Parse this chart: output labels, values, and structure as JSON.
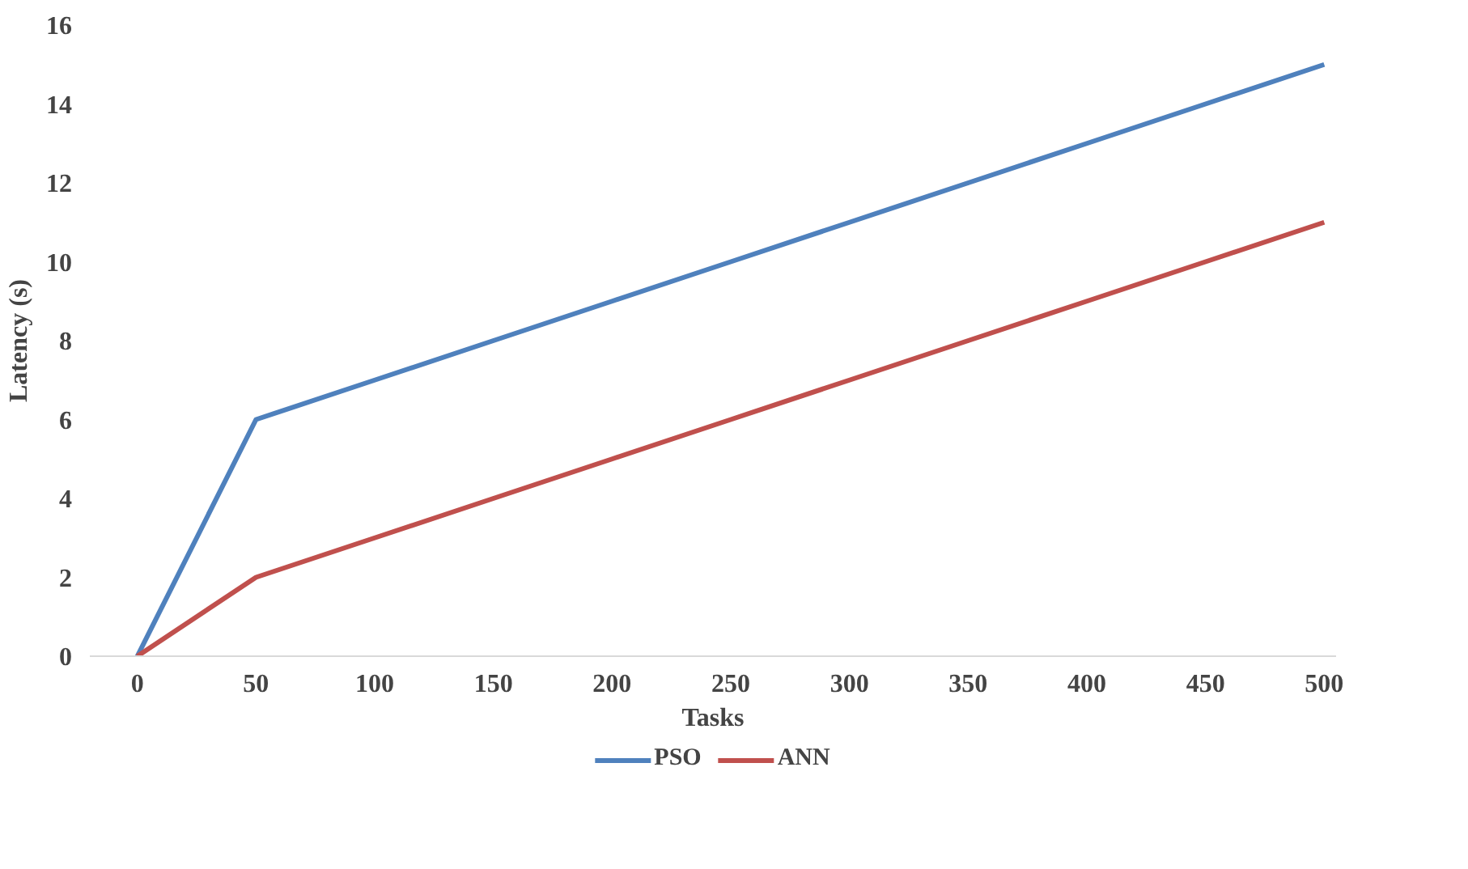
{
  "chart_data": {
    "type": "line",
    "xlabel": "Tasks",
    "ylabel": "Latency (s)",
    "categories": [
      "0",
      "50",
      "100",
      "150",
      "200",
      "250",
      "300",
      "350",
      "400",
      "450",
      "500"
    ],
    "series": [
      {
        "name": "PSO",
        "color": "#4f81bd",
        "values": [
          0,
          6,
          7,
          8,
          9,
          10,
          11,
          12,
          13,
          14,
          15
        ]
      },
      {
        "name": "ANN",
        "color": "#c0504d",
        "values": [
          0,
          2,
          3,
          4,
          5,
          6,
          7,
          8,
          9,
          10,
          11
        ]
      }
    ],
    "ylim": [
      0,
      16
    ],
    "yticks": [
      0,
      2,
      4,
      6,
      8,
      10,
      12,
      14,
      16
    ],
    "grid": false,
    "legend": "bottom",
    "marker": "none",
    "line_style": "solid"
  }
}
